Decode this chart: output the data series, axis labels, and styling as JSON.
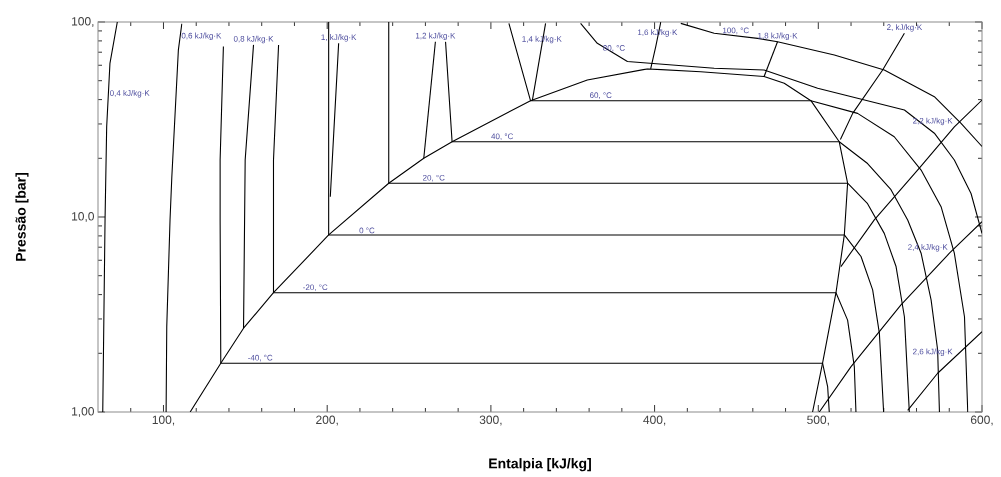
{
  "chart_data": {
    "type": "line",
    "xlabel": "Entalpia [kJ/kg]",
    "ylabel": "Pressão [bar]",
    "log": "y",
    "marker": "none",
    "line_style": "solid",
    "xlim": [
      60,
      600
    ],
    "ylim": [
      1,
      100
    ],
    "xticks": [
      {
        "value": 80,
        "label": null
      },
      {
        "value": 100,
        "label": "100,"
      },
      {
        "value": 120,
        "label": null
      },
      {
        "value": 140,
        "label": null
      },
      {
        "value": 160,
        "label": null
      },
      {
        "value": 180,
        "label": null
      },
      {
        "value": 200,
        "label": "200,"
      },
      {
        "value": 220,
        "label": null
      },
      {
        "value": 240,
        "label": null
      },
      {
        "value": 260,
        "label": null
      },
      {
        "value": 280,
        "label": null
      },
      {
        "value": 300,
        "label": "300,"
      },
      {
        "value": 320,
        "label": null
      },
      {
        "value": 340,
        "label": null
      },
      {
        "value": 360,
        "label": null
      },
      {
        "value": 380,
        "label": null
      },
      {
        "value": 400,
        "label": "400,"
      },
      {
        "value": 420,
        "label": null
      },
      {
        "value": 440,
        "label": null
      },
      {
        "value": 460,
        "label": null
      },
      {
        "value": 480,
        "label": null
      },
      {
        "value": 500,
        "label": "500,"
      },
      {
        "value": 520,
        "label": null
      },
      {
        "value": 540,
        "label": null
      },
      {
        "value": 560,
        "label": null
      },
      {
        "value": 580,
        "label": null
      },
      {
        "value": 600,
        "label": "600,"
      }
    ],
    "yticks": [
      {
        "value": 1,
        "label": "1,00"
      },
      {
        "value": 2,
        "label": null
      },
      {
        "value": 3,
        "label": null
      },
      {
        "value": 4,
        "label": null
      },
      {
        "value": 5,
        "label": null
      },
      {
        "value": 6,
        "label": null
      },
      {
        "value": 7,
        "label": null
      },
      {
        "value": 8,
        "label": null
      },
      {
        "value": 9,
        "label": null
      },
      {
        "value": 10,
        "label": "10,0"
      },
      {
        "value": 20,
        "label": null
      },
      {
        "value": 30,
        "label": null
      },
      {
        "value": 40,
        "label": null
      },
      {
        "value": 50,
        "label": null
      },
      {
        "value": 60,
        "label": null
      },
      {
        "value": 70,
        "label": null
      },
      {
        "value": 80,
        "label": null
      },
      {
        "value": 90,
        "label": null
      },
      {
        "value": 100,
        "label": "100,"
      }
    ],
    "series": [
      {
        "color": "#000000",
        "x": [
          116.3,
          135,
          148.9,
          167.2,
          200.9,
          237.6,
          259,
          276.3,
          324.2,
          358.9,
          395.6,
          428.2,
          466.9,
          479.2,
          495.5,
          512.8,
          517.9,
          515.9,
          510.8,
          502.6,
          496.5
        ],
        "values": [
          1.0,
          1.78,
          2.69,
          4.09,
          8.09,
          14.9,
          20.0,
          24.3,
          39.5,
          50.4,
          57.5,
          55.6,
          52.5,
          48.5,
          39.5,
          24.3,
          14.9,
          8.09,
          4.09,
          1.78,
          1.0
        ]
      },
      {
        "color": "#000000",
        "x": [
          136.6,
          134.6,
          134.6,
          135,
          502.6,
          505.7,
          506.7
        ],
        "values": [
          74.8,
          19.6,
          9.66,
          1.78,
          1.78,
          1.35,
          1.0
        ]
      },
      {
        "color": "#000000",
        "x": [
          170.3,
          167.2,
          167.2,
          510.8,
          517.9,
          522.0,
          523.0
        ],
        "values": [
          76.3,
          19.6,
          4.09,
          4.09,
          2.96,
          1.71,
          1.0
        ]
      },
      {
        "color": "#000000",
        "x": [
          200.9,
          200.9,
          515.9,
          526.1,
          533.2,
          537.3,
          539.9
        ],
        "values": [
          100,
          8.09,
          8.09,
          6.27,
          4.23,
          2.54,
          1.0
        ]
      },
      {
        "color": "#000000",
        "x": [
          237.6,
          237.6,
          517.9,
          530.1,
          540.3,
          547.5,
          552.6,
          555.6
        ],
        "values": [
          100,
          14.9,
          14.9,
          11.7,
          8.24,
          5.57,
          3.08,
          1.0
        ]
      },
      {
        "color": "#000000",
        "x": [
          272.3,
          276.3,
          512.8,
          530.1,
          544.4,
          554.6,
          562.8,
          568.9,
          572.9,
          574.0
        ],
        "values": [
          79.2,
          24.3,
          24.3,
          18.8,
          13.8,
          9.66,
          6.52,
          3.76,
          2.08,
          1.0
        ]
      },
      {
        "color": "#000000",
        "x": [
          311,
          324.2,
          495.5,
          524.0,
          546.4,
          562.8,
          575.0,
          583.1,
          589.3,
          591.3
        ],
        "values": [
          98.4,
          39.5,
          39.5,
          34.0,
          25.8,
          17.4,
          11.3,
          6.52,
          3.08,
          1.0
        ]
      },
      {
        "color": "#000000",
        "x": [
          354.8,
          365,
          383.4,
          436.4,
          466.9,
          499.6,
          552.6,
          570.9,
          583.1,
          593.3,
          600
        ],
        "values": [
          98.4,
          77.8,
          62.7,
          57.9,
          56.7,
          45.7,
          35.4,
          26.9,
          19.6,
          13.2,
          8.24
        ]
      },
      {
        "color": "#000000",
        "x": [
          416,
          436.4,
          462.9,
          475.1,
          509.8,
          540.3,
          570.9,
          587.2,
          600
        ],
        "values": [
          98.4,
          87.5,
          82.4,
          79.2,
          67.7,
          56.7,
          41.4,
          30.2,
          23.0
        ]
      },
      {
        "color": "#000000",
        "x": [
          71.8,
          67.3,
          65.3,
          64.3,
          62.9
        ],
        "values": [
          100,
          61.4,
          29.0,
          9.66,
          1.0
        ]
      },
      {
        "color": "#000000",
        "x": [
          111.2,
          109.1,
          105.1,
          104,
          102,
          101.6
        ],
        "values": [
          98,
          72,
          16.1,
          9.66,
          2.74,
          1.0
        ]
      },
      {
        "color": "#000000",
        "x": [
          155,
          149.9,
          148.9
        ],
        "values": [
          76.3,
          19.6,
          2.69
        ]
      },
      {
        "color": "#000000",
        "x": [
          207,
          204,
          201.9
        ],
        "values": [
          77.8,
          26.9,
          12.7
        ]
      },
      {
        "color": "#000000",
        "x": [
          266.1,
          259
        ],
        "values": [
          79.2,
          20.0
        ]
      },
      {
        "color": "#000000",
        "x": [
          333.4,
          325.3
        ],
        "values": [
          98.4,
          39.5
        ]
      },
      {
        "color": "#000000",
        "x": [
          403.8,
          400.7,
          397.6
        ],
        "values": [
          100,
          74.8,
          57.5
        ]
      },
      {
        "color": "#000000",
        "x": [
          475.1,
          466.9
        ],
        "values": [
          79.2,
          52.5
        ]
      },
      {
        "color": "#000000",
        "x": [
          552.6,
          539.3,
          521,
          513.5
        ],
        "values": [
          87.5,
          56.7,
          34.0,
          25
        ]
      },
      {
        "color": "#000000",
        "x": [
          600,
          583.1,
          561.7,
          534.2,
          513.8
        ],
        "values": [
          39.8,
          29.0,
          17.8,
          9.66,
          5.57
        ]
      },
      {
        "color": "#000000",
        "x": [
          600,
          580.1,
          550.5,
          520,
          500.6
        ],
        "values": [
          9.46,
          6.52,
          3.54,
          1.71,
          1.0
        ]
      },
      {
        "color": "#000000",
        "x": [
          600,
          572.9,
          554.6
        ],
        "values": [
          2.58,
          1.58,
          1.02
        ]
      }
    ],
    "annotations": [
      {
        "text": "0,4 kJ/kg·K",
        "x": 66.1,
        "y": 40.2
      },
      {
        "text": "0,6 kJ/kg·K",
        "x": 109.9,
        "y": 79.2
      },
      {
        "text": "0,8 kJ/kg·K",
        "x": 155,
        "y": 76.3
      },
      {
        "text": "1, kJ/kg·K",
        "x": 207,
        "y": 77.8
      },
      {
        "text": "1,2 kJ/kg·K",
        "x": 266.1,
        "y": 79.2
      },
      {
        "text": "1,4 kJ/kg·K",
        "x": 331.1,
        "y": 76.2
      },
      {
        "text": "80, °C",
        "x": 375.2,
        "y": 69.0
      },
      {
        "text": "1,6 kJ/kg·K",
        "x": 401.7,
        "y": 82.4
      },
      {
        "text": "100, °C",
        "x": 449.6,
        "y": 84.9
      },
      {
        "text": "1,8 kJ/kg·K",
        "x": 475.1,
        "y": 79.2
      },
      {
        "text": "2, kJ/kg·K",
        "x": 552.6,
        "y": 87.5
      },
      {
        "text": "2,2 kJ/kg·K",
        "x": 583.1,
        "y": 29.0
      },
      {
        "text": "2,4 kJ/kg·K",
        "x": 580.1,
        "y": 6.52
      },
      {
        "text": "2,6 kJ/kg·K",
        "x": 583.1,
        "y": 1.9
      },
      {
        "text": "60, °C",
        "x": 367.1,
        "y": 39.5
      },
      {
        "text": "40, °C",
        "x": 306.9,
        "y": 24.3
      },
      {
        "text": "20, °C",
        "x": 265.1,
        "y": 14.9
      },
      {
        "text": "0 °C",
        "x": 224.3,
        "y": 8.09
      },
      {
        "text": "-20, °C",
        "x": 192.7,
        "y": 4.09
      },
      {
        "text": "-40, °C",
        "x": 159.1,
        "y": 1.78
      }
    ]
  }
}
